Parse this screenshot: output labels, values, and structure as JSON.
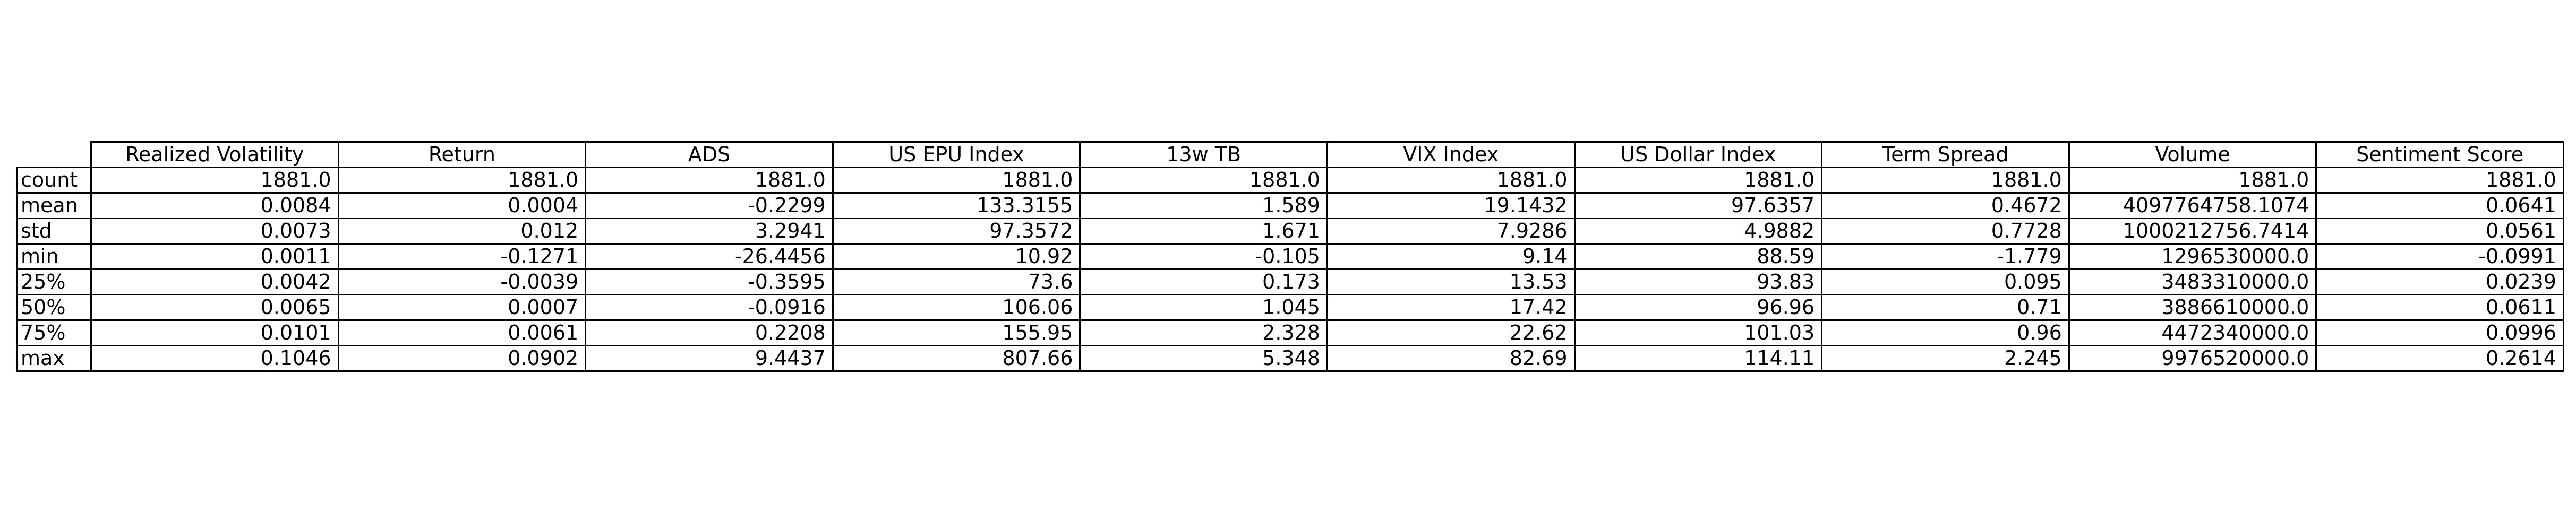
{
  "chart_data": {
    "type": "table",
    "columns": [
      "Realized Volatility",
      "Return",
      "ADS",
      "US EPU Index",
      "13w TB",
      "VIX Index",
      "US Dollar Index",
      "Term Spread",
      "Volume",
      "Sentiment Score"
    ],
    "rows": [
      {
        "label": "count",
        "values": [
          "1881.0",
          "1881.0",
          "1881.0",
          "1881.0",
          "1881.0",
          "1881.0",
          "1881.0",
          "1881.0",
          "1881.0",
          "1881.0"
        ]
      },
      {
        "label": "mean",
        "values": [
          "0.0084",
          "0.0004",
          "-0.2299",
          "133.3155",
          "1.589",
          "19.1432",
          "97.6357",
          "0.4672",
          "4097764758.1074",
          "0.0641"
        ]
      },
      {
        "label": "std",
        "values": [
          "0.0073",
          "0.012",
          "3.2941",
          "97.3572",
          "1.671",
          "7.9286",
          "4.9882",
          "0.7728",
          "1000212756.7414",
          "0.0561"
        ]
      },
      {
        "label": "min",
        "values": [
          "0.0011",
          "-0.1271",
          "-26.4456",
          "10.92",
          "-0.105",
          "9.14",
          "88.59",
          "-1.779",
          "1296530000.0",
          "-0.0991"
        ]
      },
      {
        "label": "25%",
        "values": [
          "0.0042",
          "-0.0039",
          "-0.3595",
          "73.6",
          "0.173",
          "13.53",
          "93.83",
          "0.095",
          "3483310000.0",
          "0.0239"
        ]
      },
      {
        "label": "50%",
        "values": [
          "0.0065",
          "0.0007",
          "-0.0916",
          "106.06",
          "1.045",
          "17.42",
          "96.96",
          "0.71",
          "3886610000.0",
          "0.0611"
        ]
      },
      {
        "label": "75%",
        "values": [
          "0.0101",
          "0.0061",
          "0.2208",
          "155.95",
          "2.328",
          "22.62",
          "101.03",
          "0.96",
          "4472340000.0",
          "0.0996"
        ]
      },
      {
        "label": "max",
        "values": [
          "0.1046",
          "0.0902",
          "9.4437",
          "807.66",
          "5.348",
          "82.69",
          "114.11",
          "2.245",
          "9976520000.0",
          "0.2614"
        ]
      }
    ]
  }
}
